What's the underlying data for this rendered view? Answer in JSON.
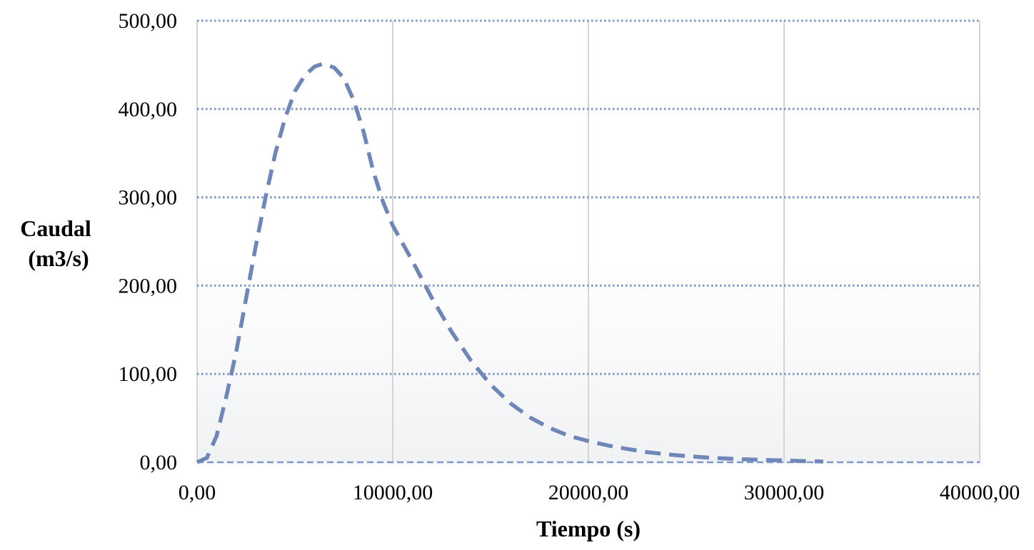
{
  "chart_data": {
    "type": "line",
    "title": "",
    "xlabel": "Tiempo (s)",
    "ylabel_lines": [
      "Caudal",
      "(m3/s)"
    ],
    "xlim": [
      0,
      40000
    ],
    "ylim": [
      0,
      500
    ],
    "x_ticks": [
      0,
      10000,
      20000,
      30000,
      40000
    ],
    "y_ticks": [
      0,
      100,
      200,
      300,
      400,
      500
    ],
    "x_tick_labels": [
      "0,00",
      "10000,00",
      "20000,00",
      "30000,00",
      "40000,00"
    ],
    "y_tick_labels": [
      "0,00",
      "100,00",
      "200,00",
      "300,00",
      "400,00",
      "500,00"
    ],
    "grid": {
      "horizontal": "dotted",
      "vertical": "solid"
    },
    "legend": "none",
    "series": [
      {
        "line_style": "dashed",
        "color": "#6E87B8",
        "points": [
          [
            0,
            0
          ],
          [
            500,
            5
          ],
          [
            1000,
            30
          ],
          [
            1500,
            75
          ],
          [
            2000,
            125
          ],
          [
            2500,
            185
          ],
          [
            3000,
            245
          ],
          [
            3500,
            300
          ],
          [
            4000,
            350
          ],
          [
            4500,
            390
          ],
          [
            5000,
            420
          ],
          [
            5500,
            438
          ],
          [
            6000,
            448
          ],
          [
            6400,
            451
          ],
          [
            7000,
            447
          ],
          [
            7500,
            435
          ],
          [
            8000,
            410
          ],
          [
            8500,
            375
          ],
          [
            9000,
            330
          ],
          [
            9500,
            295
          ],
          [
            10000,
            268
          ],
          [
            11000,
            228
          ],
          [
            12000,
            186
          ],
          [
            13000,
            148
          ],
          [
            14000,
            115
          ],
          [
            15000,
            88
          ],
          [
            16000,
            67
          ],
          [
            17000,
            51
          ],
          [
            18000,
            39
          ],
          [
            19000,
            30
          ],
          [
            20000,
            24
          ],
          [
            21000,
            19
          ],
          [
            22000,
            15
          ],
          [
            23000,
            11.5
          ],
          [
            24000,
            9
          ],
          [
            25000,
            7
          ],
          [
            26000,
            5.5
          ],
          [
            27000,
            4.3
          ],
          [
            28000,
            3.3
          ],
          [
            29000,
            2.6
          ],
          [
            30000,
            2
          ],
          [
            31000,
            1.3
          ],
          [
            32000,
            0.8
          ]
        ]
      }
    ],
    "colors": {
      "series": "#6E87B8",
      "grid_horizontal": "#7E97C6",
      "grid_vertical": "#D4D4D4",
      "baseline": "#7E97C6"
    }
  }
}
